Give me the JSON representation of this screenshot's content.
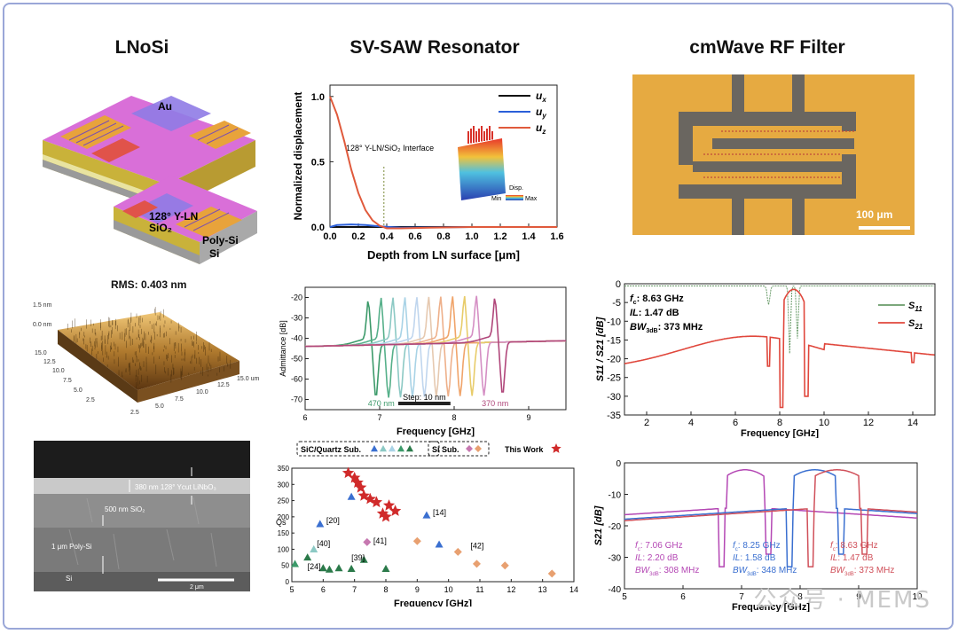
{
  "titles": {
    "left": "LNoSi",
    "middle": "SV-SAW Resonator",
    "right": "cmWave RF Filter"
  },
  "stack": {
    "au": "Au",
    "ln": "128° Y-LN",
    "sio2": "SiO₂",
    "polysi": "Poly-Si",
    "si": "Si"
  },
  "afm": {
    "rms_label": "RMS:  0.403 nm",
    "z_ticks": [
      "1.5 nm",
      "0.0 nm"
    ],
    "y_ticks": [
      "15.0",
      "12.5",
      "10.0",
      "7.5",
      "5.0",
      "2.5"
    ],
    "x_ticks": [
      "2.5",
      "5.0",
      "7.5",
      "10.0",
      "12.5",
      "15.0 um"
    ]
  },
  "sem": {
    "ln_label": "380 nm 128° Ycut LiNbO₃",
    "sio2_label": "500 nm SiO₂",
    "polysi_label": "1 μm Poly-Si",
    "si_label": "Si",
    "scalebar": "2 μm"
  },
  "micrograph": {
    "scalebar": "100 μm"
  },
  "chart_data": [
    {
      "type": "line",
      "id": "displacement",
      "xlabel": "Depth from LN surface [μm]",
      "ylabel": "Normalized displacement",
      "xlim": [
        0.0,
        1.6
      ],
      "ylim": [
        0.0,
        1.0
      ],
      "x_ticks": [
        "0.0",
        "0.2",
        "0.4",
        "0.6",
        "0.8",
        "1.0",
        "1.2",
        "1.4",
        "1.6"
      ],
      "y_ticks": [
        "0.0",
        "0.5",
        "1.0"
      ],
      "annotation": "128° Y-LN/SiO₂ Interface",
      "annotation_x": 0.38,
      "inset_labels": {
        "disp": "Disp.",
        "min": "Min",
        "max": "Max"
      },
      "legend": "top-right",
      "series": [
        {
          "name": "ux",
          "color": "#111111",
          "x": [
            0,
            0.1,
            0.2,
            0.3,
            0.4,
            0.6,
            1.0,
            1.6
          ],
          "y": [
            0,
            0,
            0,
            0,
            0,
            0,
            0,
            0
          ]
        },
        {
          "name": "uy",
          "color": "#2b5fd9",
          "x": [
            0,
            0.05,
            0.15,
            0.25,
            0.35,
            0.5,
            1.0,
            1.6
          ],
          "y": [
            0.0,
            0.015,
            0.02,
            0.015,
            0.005,
            -0.005,
            0,
            0
          ]
        },
        {
          "name": "uz",
          "color": "#e05a3c",
          "x": [
            0,
            0.05,
            0.1,
            0.15,
            0.2,
            0.25,
            0.3,
            0.35,
            0.4,
            0.5,
            0.7,
            1.0,
            1.6
          ],
          "y": [
            1.0,
            0.86,
            0.66,
            0.44,
            0.26,
            0.13,
            0.05,
            0.01,
            -0.01,
            -0.01,
            -0.005,
            0,
            0
          ]
        }
      ]
    },
    {
      "type": "line",
      "id": "admittance",
      "xlabel": "Frequency [GHz]",
      "ylabel": "Admittance [dB]",
      "xlim": [
        6,
        9.5
      ],
      "ylim": [
        -75,
        -15
      ],
      "x_ticks": [
        "6",
        "7",
        "8",
        "9"
      ],
      "y_ticks": [
        "-20",
        "-30",
        "-40",
        "-50",
        "-60",
        "-70"
      ],
      "annotations": {
        "start": "470 nm",
        "step": "Step: 10 nm",
        "end": "370 nm"
      },
      "resonances": [
        6.85,
        7.02,
        7.18,
        7.34,
        7.5,
        7.66,
        7.82,
        7.98,
        8.14,
        8.3,
        8.55
      ],
      "colors": [
        "#3c9a6a",
        "#56b08a",
        "#8cc9c4",
        "#a9d3e6",
        "#c0d6ee",
        "#e6c9b0",
        "#eeb08a",
        "#f0a46a",
        "#e8cc6a",
        "#d58fc4",
        "#b0467a"
      ]
    },
    {
      "type": "scatter",
      "id": "qs",
      "xlabel": "Frequency [GHz]",
      "ylabel": "Qs",
      "xlim": [
        5,
        14
      ],
      "ylim": [
        0,
        350
      ],
      "x_ticks": [
        "5",
        "6",
        "7",
        "8",
        "9",
        "10",
        "11",
        "12",
        "13",
        "14"
      ],
      "y_ticks": [
        "0",
        "50",
        "100",
        "150",
        "200",
        "250",
        "300",
        "350"
      ],
      "legend_items": {
        "sic": "SiC/Quartz Sub.",
        "si": "Si Sub.",
        "this": "This Work"
      },
      "labels": [
        {
          "text": "[20]",
          "x": 6.1,
          "y": 180
        },
        {
          "text": "[40]",
          "x": 5.8,
          "y": 110
        },
        {
          "text": "[24]",
          "x": 5.5,
          "y": 38
        },
        {
          "text": "[39]",
          "x": 6.9,
          "y": 65
        },
        {
          "text": "[41]",
          "x": 7.6,
          "y": 118
        },
        {
          "text": "[14]",
          "x": 9.5,
          "y": 205
        },
        {
          "text": "[42]",
          "x": 10.7,
          "y": 102
        }
      ],
      "sic": [
        {
          "x": 5.1,
          "y": 55
        },
        {
          "x": 5.5,
          "y": 75
        },
        {
          "x": 5.7,
          "y": 100
        },
        {
          "x": 5.9,
          "y": 178
        },
        {
          "x": 6.0,
          "y": 42
        },
        {
          "x": 6.2,
          "y": 38
        },
        {
          "x": 6.5,
          "y": 42
        },
        {
          "x": 6.9,
          "y": 40
        },
        {
          "x": 6.9,
          "y": 262
        },
        {
          "x": 7.3,
          "y": 68
        },
        {
          "x": 8.0,
          "y": 40
        },
        {
          "x": 9.3,
          "y": 205
        },
        {
          "x": 9.7,
          "y": 115
        }
      ],
      "si": [
        {
          "x": 7.4,
          "y": 122
        },
        {
          "x": 9.0,
          "y": 125
        },
        {
          "x": 10.3,
          "y": 92
        },
        {
          "x": 10.9,
          "y": 55
        },
        {
          "x": 11.8,
          "y": 50
        },
        {
          "x": 13.3,
          "y": 25
        }
      ],
      "this": [
        {
          "x": 6.8,
          "y": 335
        },
        {
          "x": 7.0,
          "y": 320
        },
        {
          "x": 7.1,
          "y": 305
        },
        {
          "x": 7.2,
          "y": 290
        },
        {
          "x": 7.3,
          "y": 265
        },
        {
          "x": 7.5,
          "y": 255
        },
        {
          "x": 7.7,
          "y": 245
        },
        {
          "x": 7.9,
          "y": 210
        },
        {
          "x": 8.0,
          "y": 200
        },
        {
          "x": 8.1,
          "y": 235
        },
        {
          "x": 8.3,
          "y": 218
        }
      ]
    },
    {
      "type": "line",
      "id": "s-params",
      "xlabel": "Frequency [GHz]",
      "ylabel": "S11 / S21 [dB]",
      "xlim": [
        1,
        15
      ],
      "ylim": [
        -35,
        0
      ],
      "x_ticks": [
        "2",
        "4",
        "6",
        "8",
        "10",
        "12",
        "14"
      ],
      "y_ticks": [
        "0",
        "-5",
        "-10",
        "-15",
        "-20",
        "-25",
        "-30",
        "-35"
      ],
      "specs": {
        "fc": "8.63 GHz",
        "il": "1.47 dB",
        "bw": "373 MHz"
      },
      "legend": "top-right",
      "series": [
        {
          "name": "S11",
          "color": "#6a9c6a"
        },
        {
          "name": "S21",
          "color": "#e0473c"
        }
      ]
    },
    {
      "type": "line",
      "id": "s21-comparison",
      "xlabel": "Frequency [GHz]",
      "ylabel": "S21 [dB]",
      "xlim": [
        5,
        10
      ],
      "ylim": [
        -40,
        0
      ],
      "x_ticks": [
        "5",
        "6",
        "7",
        "8",
        "9",
        "10"
      ],
      "y_ticks": [
        "0",
        "-10",
        "-20",
        "-30",
        "-40"
      ],
      "filters": [
        {
          "fc": "7.06 GHz",
          "il": "2.20 dB",
          "bw": "308 MHz",
          "color": "#b447b4"
        },
        {
          "fc": "8.25 GHz",
          "il": "1.58 dB",
          "bw": "348 MHz",
          "color": "#3a6fd0"
        },
        {
          "fc": "8.63 GHz",
          "il": "1.47 dB",
          "bw": "373 MHz",
          "color": "#d0505a"
        }
      ]
    }
  ],
  "watermark": "公众号 · MEMS"
}
